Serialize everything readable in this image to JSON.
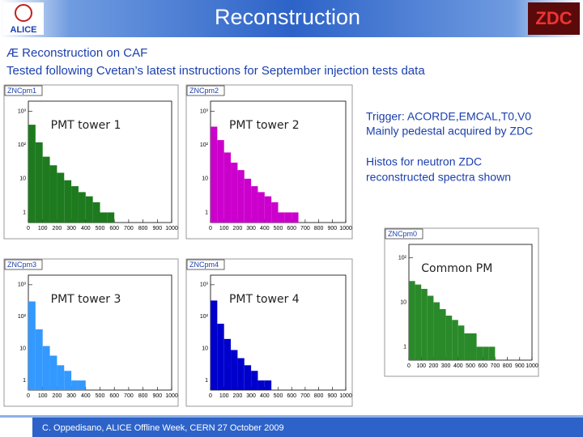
{
  "header": {
    "title": "Reconstruction",
    "logo_left": "ALICE",
    "logo_right": "ZDC"
  },
  "bullets": [
    "Æ Reconstruction on CAF",
    "Tested following Cvetan’s latest instructions for September injection tests data"
  ],
  "notes": [
    "Trigger: ACORDE,EMCAL,T0,V0",
    "Mainly pedestal acquired by ZDC",
    "Histos for neutron ZDC",
    "reconstructed spectra shown"
  ],
  "chart_data": [
    {
      "type": "histogram",
      "title": "ZNCpm1",
      "annotation": "PMT tower 1",
      "color": "#1e7a1e",
      "log_y": true,
      "bins": [
        0,
        50,
        100,
        150,
        200,
        250,
        300,
        350,
        400,
        450,
        500,
        550,
        600,
        650,
        700,
        750,
        800,
        850,
        900,
        950,
        1000
      ],
      "values": [
        400,
        120,
        45,
        25,
        15,
        9,
        6,
        4,
        3,
        2,
        1,
        1,
        0,
        0,
        0,
        0,
        0,
        0,
        0,
        0
      ],
      "xlim": [
        0,
        1000
      ],
      "ylim": [
        0.5,
        2000
      ],
      "xticks": [
        0,
        100,
        200,
        300,
        400,
        500,
        600,
        700,
        800,
        900,
        1000
      ],
      "yticks": [
        1,
        10,
        {
          "value": 100,
          "label": "10²"
        },
        {
          "value": 1000,
          "label": "10³"
        }
      ]
    },
    {
      "type": "histogram",
      "title": "ZNCpm2",
      "annotation": "PMT tower 2",
      "color": "#cc00cc",
      "log_y": true,
      "bins": [
        0,
        50,
        100,
        150,
        200,
        250,
        300,
        350,
        400,
        450,
        500,
        550,
        600,
        650,
        700,
        750,
        800,
        850,
        900,
        950,
        1000
      ],
      "values": [
        350,
        140,
        60,
        30,
        18,
        10,
        6,
        4,
        3,
        2,
        1,
        1,
        1,
        0,
        0,
        0,
        0,
        0,
        0,
        0
      ],
      "xlim": [
        0,
        1000
      ],
      "ylim": [
        0.5,
        2000
      ],
      "xticks": [
        0,
        100,
        200,
        300,
        400,
        500,
        600,
        700,
        800,
        900,
        1000
      ],
      "yticks": [
        1,
        10,
        {
          "value": 100,
          "label": "10²"
        },
        {
          "value": 1000,
          "label": "10³"
        }
      ]
    },
    {
      "type": "histogram",
      "title": "ZNCpm0",
      "annotation": "Common PM",
      "color": "#2a8a2a",
      "log_y": true,
      "bins": [
        0,
        50,
        100,
        150,
        200,
        250,
        300,
        350,
        400,
        450,
        500,
        550,
        600,
        650,
        700,
        750,
        800,
        850,
        900,
        950,
        1000
      ],
      "values": [
        30,
        25,
        20,
        14,
        10,
        7,
        5,
        4,
        3,
        2,
        2,
        1,
        1,
        1,
        0,
        0,
        0,
        0,
        0,
        0
      ],
      "xlim": [
        0,
        1000
      ],
      "ylim": [
        0.5,
        200
      ],
      "xticks": [
        0,
        100,
        200,
        300,
        400,
        500,
        600,
        700,
        800,
        900,
        1000
      ],
      "yticks": [
        1,
        10,
        {
          "value": 100,
          "label": "10²"
        }
      ]
    },
    {
      "type": "histogram",
      "title": "ZNCpm3",
      "annotation": "PMT tower 3",
      "color": "#3399ff",
      "log_y": true,
      "bins": [
        0,
        50,
        100,
        150,
        200,
        250,
        300,
        350,
        400,
        450,
        500,
        550,
        600,
        650,
        700,
        750,
        800,
        850,
        900,
        950,
        1000
      ],
      "values": [
        300,
        40,
        12,
        6,
        3,
        2,
        1,
        1,
        0,
        0,
        0,
        0,
        0,
        0,
        0,
        0,
        0,
        0,
        0,
        0
      ],
      "xlim": [
        0,
        1000
      ],
      "ylim": [
        0.5,
        2000
      ],
      "xticks": [
        0,
        100,
        200,
        300,
        400,
        500,
        600,
        700,
        800,
        900,
        1000
      ],
      "yticks": [
        1,
        10,
        {
          "value": 100,
          "label": "10²"
        },
        {
          "value": 1000,
          "label": "10³"
        }
      ]
    },
    {
      "type": "histogram",
      "title": "ZNCpm4",
      "annotation": "PMT tower 4",
      "color": "#0000cc",
      "log_y": true,
      "bins": [
        0,
        50,
        100,
        150,
        200,
        250,
        300,
        350,
        400,
        450,
        500,
        550,
        600,
        650,
        700,
        750,
        800,
        850,
        900,
        950,
        1000
      ],
      "values": [
        320,
        60,
        20,
        9,
        5,
        3,
        2,
        1,
        1,
        0,
        0,
        0,
        0,
        0,
        0,
        0,
        0,
        0,
        0,
        0
      ],
      "xlim": [
        0,
        1000
      ],
      "ylim": [
        0.5,
        2000
      ],
      "xticks": [
        0,
        100,
        200,
        300,
        400,
        500,
        600,
        700,
        800,
        900,
        1000
      ],
      "yticks": [
        1,
        10,
        {
          "value": 100,
          "label": "10²"
        },
        {
          "value": 1000,
          "label": "10³"
        }
      ]
    }
  ],
  "footer": "C. Oppedisano, ALICE Offline Week, CERN 27 October 2009"
}
